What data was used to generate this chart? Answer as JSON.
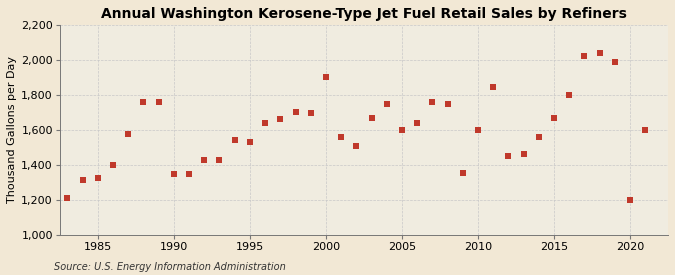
{
  "title": "Annual Washington Kerosene-Type Jet Fuel Retail Sales by Refiners",
  "ylabel": "Thousand Gallons per Day",
  "source": "Source: U.S. Energy Information Administration",
  "years": [
    1983,
    1984,
    1985,
    1986,
    1987,
    1988,
    1989,
    1990,
    1991,
    1992,
    1993,
    1994,
    1995,
    1996,
    1997,
    1998,
    1999,
    2000,
    2001,
    2002,
    2003,
    2004,
    2005,
    2006,
    2007,
    2008,
    2009,
    2010,
    2011,
    2012,
    2013,
    2014,
    2015,
    2016,
    2017,
    2018,
    2019,
    2020,
    2021
  ],
  "values": [
    1207,
    1315,
    1325,
    1400,
    1575,
    1760,
    1760,
    1345,
    1345,
    1425,
    1425,
    1540,
    1530,
    1640,
    1660,
    1700,
    1695,
    1900,
    1560,
    1505,
    1670,
    1750,
    1600,
    1640,
    1760,
    1750,
    1350,
    1600,
    1845,
    1450,
    1460,
    1560,
    1670,
    1800,
    2020,
    2040,
    1990,
    1200,
    1600
  ],
  "marker_color": "#c0392b",
  "marker_size": 18,
  "ylim": [
    1000,
    2200
  ],
  "yticks": [
    1000,
    1200,
    1400,
    1600,
    1800,
    2000,
    2200
  ],
  "ytick_labels": [
    "1,000",
    "1,200",
    "1,400",
    "1,600",
    "1,800",
    "2,000",
    "2,200"
  ],
  "xlim": [
    1982.5,
    2022.5
  ],
  "xticks": [
    1985,
    1990,
    1995,
    2000,
    2005,
    2010,
    2015,
    2020
  ],
  "background_color": "#f2e8d5",
  "plot_bg_color": "#e8f0e8",
  "grid_color": "#c8c8c8",
  "title_fontsize": 10,
  "axis_fontsize": 8,
  "tick_fontsize": 8,
  "source_fontsize": 7
}
